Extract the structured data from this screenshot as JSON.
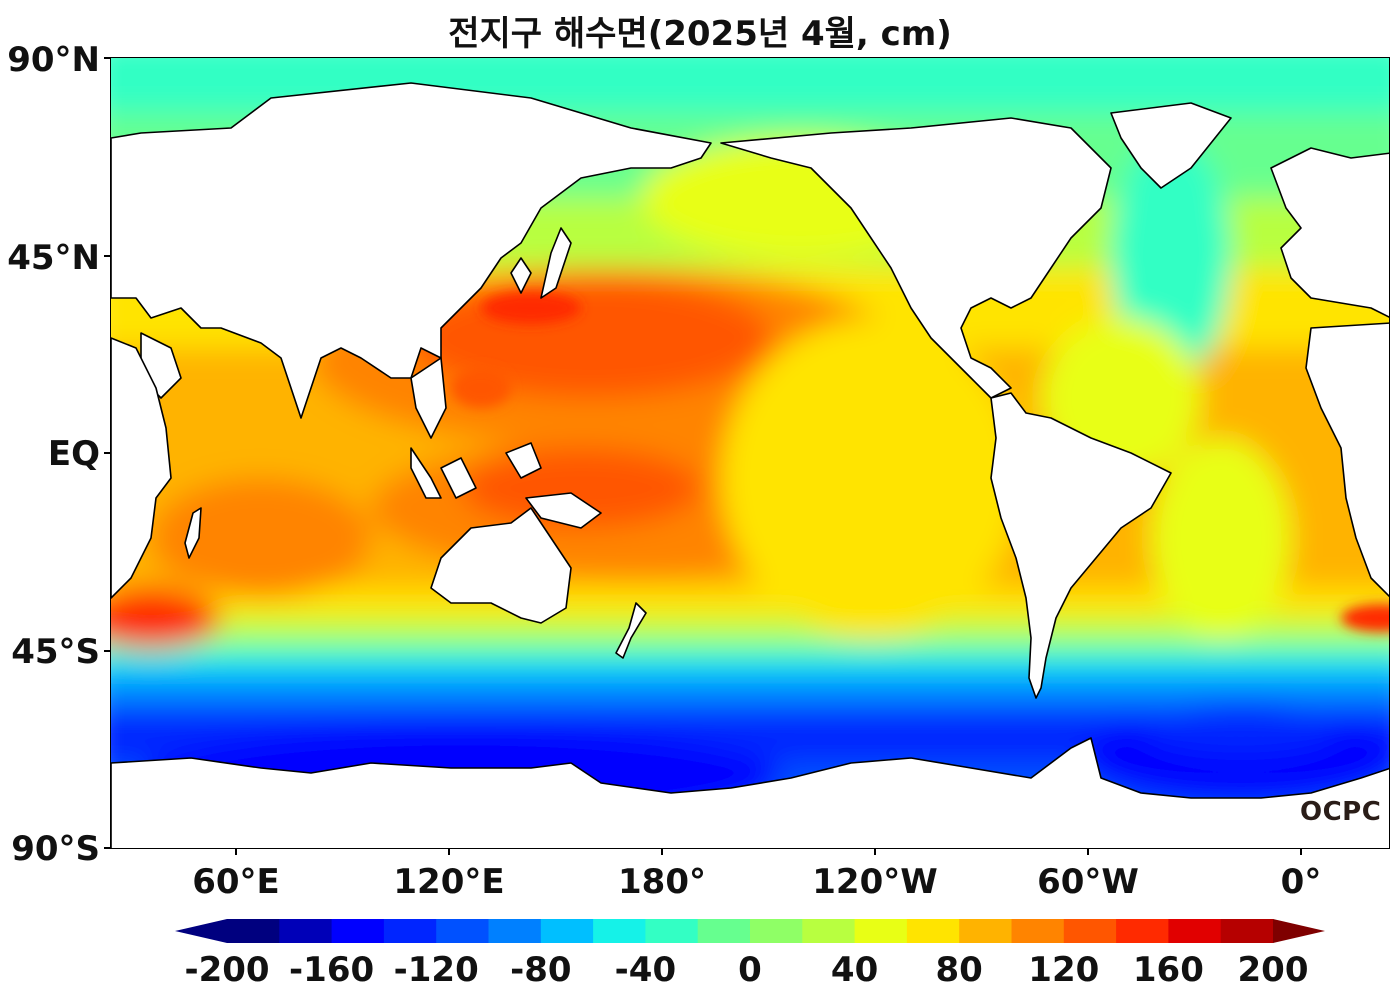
{
  "title": "전지구 해수면(2025년 4월, cm)",
  "lat_labels": [
    "90°N",
    "45°N",
    "EQ",
    "45°S",
    "90°S"
  ],
  "lon_labels": [
    "60°E",
    "120°E",
    "180°",
    "120°W",
    "60°W",
    "0°"
  ],
  "colorbar": {
    "labels": [
      "-200",
      "-160",
      "-120",
      "-80",
      "-40",
      "0",
      "40",
      "80",
      "120",
      "160",
      "200"
    ],
    "colors": [
      "#00007f",
      "#0000b8",
      "#0000ff",
      "#0025ff",
      "#0051ff",
      "#0080ff",
      "#00bfff",
      "#15f2e8",
      "#33ffc4",
      "#66ff8f",
      "#8fff66",
      "#b8ff40",
      "#e8ff15",
      "#ffe400",
      "#ffb300",
      "#ff8400",
      "#ff5600",
      "#ff2a00",
      "#e10000",
      "#b60000"
    ],
    "under_color": "#00007f",
    "over_color": "#7f0000"
  },
  "logo": "OCPC"
}
